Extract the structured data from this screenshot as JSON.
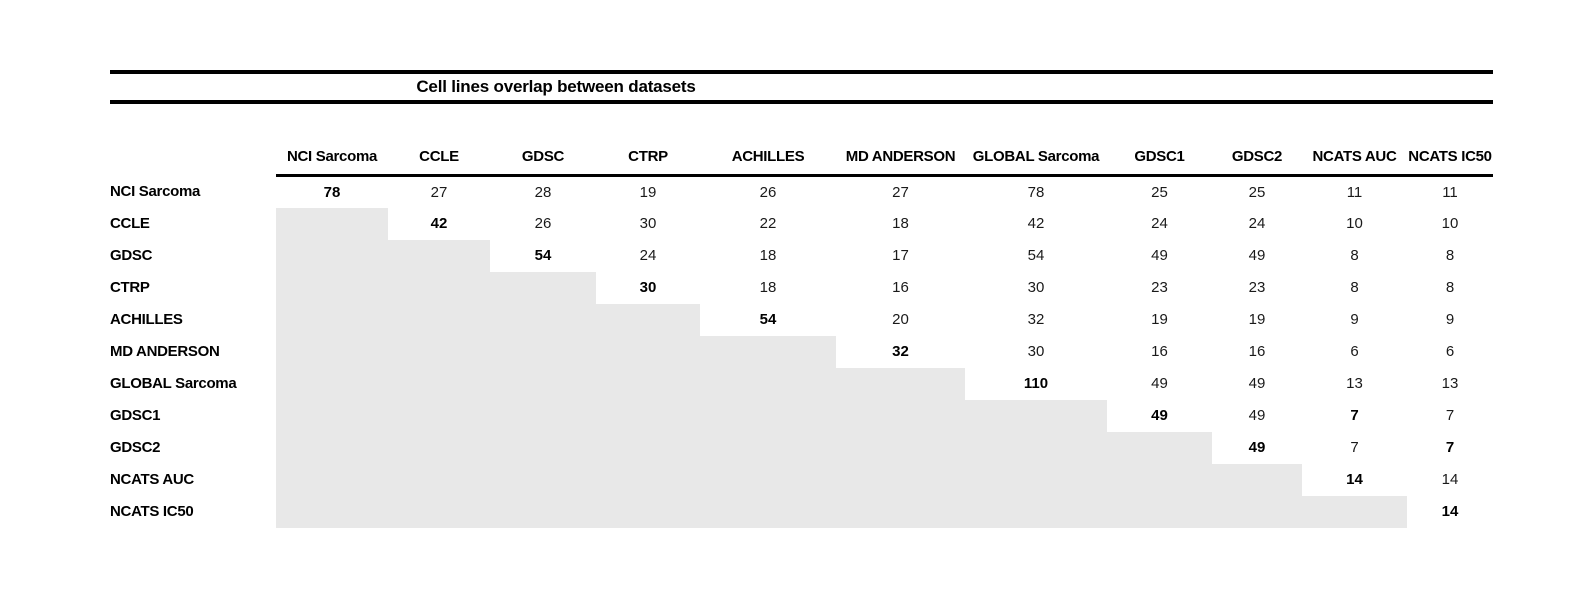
{
  "title": "Cell lines overlap between datasets",
  "columns": [
    "NCI Sarcoma",
    "CCLE",
    "GDSC",
    "CTRP",
    "ACHILLES",
    "MD ANDERSON",
    "GLOBAL Sarcoma",
    "GDSC1",
    "GDSC2",
    "NCATS AUC",
    "NCATS IC50"
  ],
  "rows": [
    {
      "label": "NCI Sarcoma",
      "values": [
        78,
        27,
        28,
        19,
        26,
        27,
        78,
        25,
        25,
        11,
        11
      ]
    },
    {
      "label": "CCLE",
      "values": [
        null,
        42,
        26,
        30,
        22,
        18,
        42,
        24,
        24,
        10,
        10
      ]
    },
    {
      "label": "GDSC",
      "values": [
        null,
        null,
        54,
        24,
        18,
        17,
        54,
        49,
        49,
        8,
        8
      ]
    },
    {
      "label": "CTRP",
      "values": [
        null,
        null,
        null,
        30,
        18,
        16,
        30,
        23,
        23,
        8,
        8
      ]
    },
    {
      "label": "ACHILLES",
      "values": [
        null,
        null,
        null,
        null,
        54,
        20,
        32,
        19,
        19,
        9,
        9
      ]
    },
    {
      "label": "MD ANDERSON",
      "values": [
        null,
        null,
        null,
        null,
        null,
        32,
        30,
        16,
        16,
        6,
        6
      ]
    },
    {
      "label": "GLOBAL Sarcoma",
      "values": [
        null,
        null,
        null,
        null,
        null,
        null,
        110,
        49,
        49,
        13,
        13
      ]
    },
    {
      "label": "GDSC1",
      "values": [
        null,
        null,
        null,
        null,
        null,
        null,
        null,
        49,
        49,
        7,
        7
      ]
    },
    {
      "label": "GDSC2",
      "values": [
        null,
        null,
        null,
        null,
        null,
        null,
        null,
        null,
        49,
        7,
        7
      ]
    },
    {
      "label": "NCATS AUC",
      "values": [
        null,
        null,
        null,
        null,
        null,
        null,
        null,
        null,
        null,
        14,
        14
      ]
    },
    {
      "label": "NCATS IC50",
      "values": [
        null,
        null,
        null,
        null,
        null,
        null,
        null,
        null,
        null,
        null,
        14
      ]
    }
  ],
  "bold_cells": [
    [
      0,
      0
    ],
    [
      1,
      1
    ],
    [
      2,
      2
    ],
    [
      3,
      3
    ],
    [
      4,
      4
    ],
    [
      5,
      5
    ],
    [
      6,
      6
    ],
    [
      7,
      7
    ],
    [
      7,
      9
    ],
    [
      8,
      8
    ],
    [
      8,
      10
    ],
    [
      9,
      9
    ],
    [
      10,
      10
    ]
  ],
  "colors": {
    "shaded_triangle": "#e8e8e8",
    "rule": "#000000",
    "text": "#1a1a1a"
  }
}
